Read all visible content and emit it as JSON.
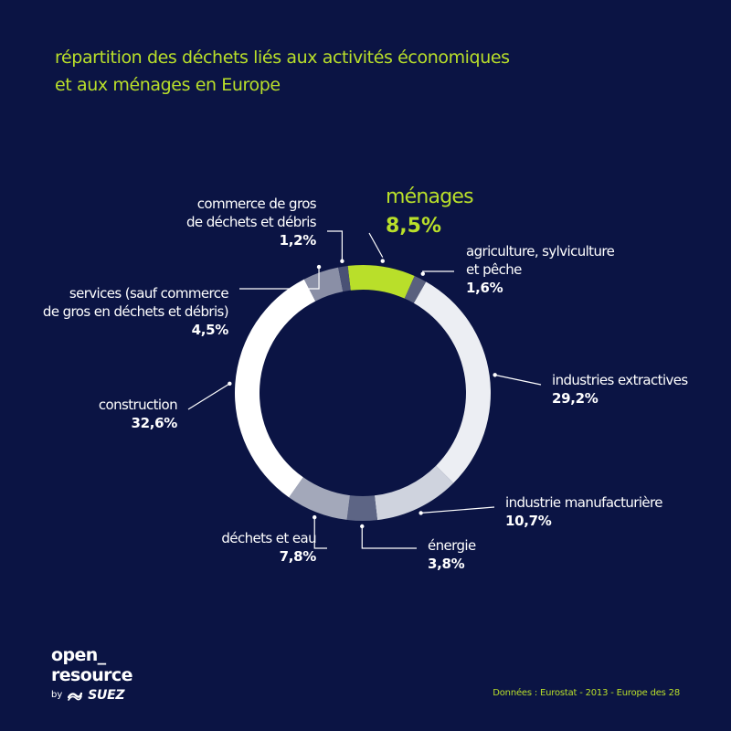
{
  "title": {
    "line1": "répartition des déchets liés aux activités économiques",
    "line2": "et aux ménages en Europe"
  },
  "chart_data": {
    "type": "pie",
    "variant": "donut",
    "start": "top",
    "direction": "clockwise",
    "segments": [
      {
        "id": "menages",
        "name_lines": [
          "ménages"
        ],
        "value_label": "8,5%",
        "value": 8.5,
        "color": "#b9df2a",
        "highlight": true
      },
      {
        "id": "agriculture",
        "name_lines": [
          "agriculture, sylviculture",
          "et pêche"
        ],
        "value_label": "1,6%",
        "value": 1.6,
        "color": "#59607e"
      },
      {
        "id": "extractives",
        "name_lines": [
          "industries extractives"
        ],
        "value_label": "29,2%",
        "value": 29.2,
        "color": "#eceef3"
      },
      {
        "id": "manufacturiere",
        "name_lines": [
          "industrie manufacturière"
        ],
        "value_label": "10,7%",
        "value": 10.7,
        "color": "#cfd3de"
      },
      {
        "id": "energie",
        "name_lines": [
          "énergie"
        ],
        "value_label": "3,8%",
        "value": 3.8,
        "color": "#5d6585"
      },
      {
        "id": "dechets_eau",
        "name_lines": [
          "déchets et eau"
        ],
        "value_label": "7,8%",
        "value": 7.8,
        "color": "#a3a8ba"
      },
      {
        "id": "construction",
        "name_lines": [
          "construction"
        ],
        "value_label": "32,6%",
        "value": 32.6,
        "color": "#ffffff"
      },
      {
        "id": "services",
        "name_lines": [
          "services (sauf commerce",
          "de gros en déchets et débris)"
        ],
        "value_label": "4,5%",
        "value": 4.5,
        "color": "#8a8fa6"
      },
      {
        "id": "commerce_gros",
        "name_lines": [
          "commerce de gros",
          "de déchets et débris"
        ],
        "value_label": "1,2%",
        "value": 1.2,
        "color": "#4a5175"
      }
    ]
  },
  "branding": {
    "logo_line1": "open_",
    "logo_line2": "resource",
    "by": "by",
    "suez": "SUEZ"
  },
  "source": "Données : Eurostat - 2013 - Europe des 28"
}
